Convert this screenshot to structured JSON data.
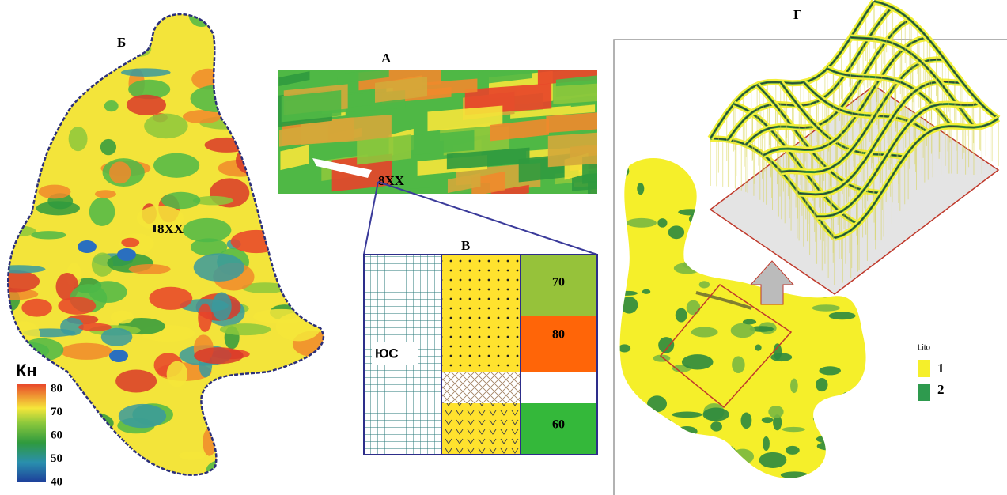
{
  "panel_b": {
    "label": "Б",
    "well": "8XX",
    "legend": {
      "title": "Кн",
      "ticks": [
        80,
        70,
        60,
        50,
        40
      ]
    }
  },
  "panel_a": {
    "label": "А",
    "well": "8XX"
  },
  "panel_v": {
    "label": "В",
    "column_label": "ЮС",
    "values": [
      70,
      80,
      60
    ]
  },
  "panel_g": {
    "label": "Г",
    "legend": {
      "title": "Lito",
      "items": [
        1,
        2
      ]
    }
  }
}
